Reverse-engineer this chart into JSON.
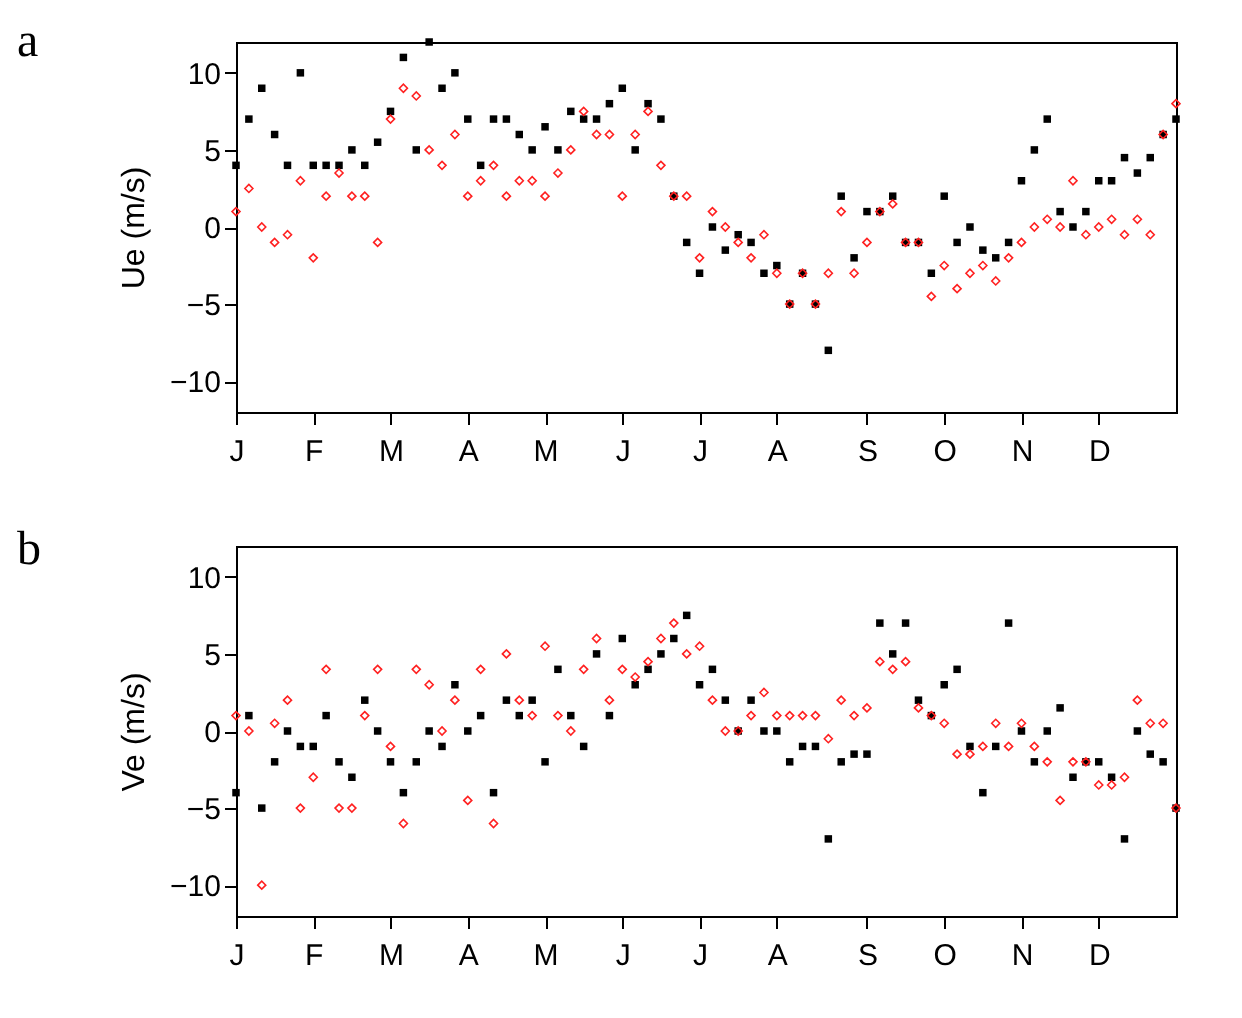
{
  "chart_data": [
    {
      "type": "scatter",
      "title": "a",
      "ylabel": "Ue (m/s)",
      "ylim": [
        -12,
        12
      ],
      "yticks": [
        -10,
        -5,
        0,
        5,
        10
      ],
      "grid": false,
      "categories": [
        "J",
        null,
        null,
        null,
        null,
        null,
        "F",
        null,
        null,
        null,
        null,
        null,
        "M",
        null,
        null,
        null,
        null,
        null,
        "A",
        null,
        null,
        null,
        null,
        null,
        "M",
        null,
        null,
        null,
        null,
        null,
        "J",
        null,
        null,
        null,
        null,
        null,
        "J",
        null,
        null,
        null,
        null,
        null,
        "A",
        null,
        null,
        null,
        null,
        null,
        null,
        "S",
        null,
        null,
        null,
        null,
        null,
        "O",
        null,
        null,
        null,
        null,
        null,
        "N",
        null,
        null,
        null,
        null,
        null,
        "D",
        null,
        null,
        null,
        null,
        null,
        null
      ],
      "series": [
        {
          "color": "#000000",
          "marker": "square",
          "values": [
            4,
            7,
            9,
            6,
            4,
            10,
            4,
            4,
            4,
            5,
            4,
            5.5,
            7.5,
            11,
            5,
            12,
            9,
            10,
            7,
            4,
            7,
            7,
            6,
            5,
            6.5,
            5,
            7.5,
            7,
            7,
            8,
            9,
            5,
            8,
            7,
            2,
            -1,
            -3,
            0,
            -1.5,
            -0.5,
            -1,
            -3,
            -2.5,
            -5,
            -3,
            -5,
            -8,
            2,
            -2,
            1,
            1,
            2,
            -1,
            -1,
            -3,
            2,
            -1,
            0,
            -1.5,
            -2,
            -1,
            3,
            5,
            7,
            1,
            0,
            1,
            3,
            3,
            4.5,
            3.5,
            4.5,
            6,
            7
          ]
        },
        {
          "color": "#ff2020",
          "marker": "diamond",
          "values": [
            1,
            2.5,
            0,
            -1,
            -0.5,
            3,
            -2,
            2,
            3.5,
            2,
            2,
            -1,
            7,
            9,
            8.5,
            5,
            4,
            6,
            2,
            3,
            4,
            2,
            3,
            3,
            2,
            3.5,
            5,
            7.5,
            6,
            6,
            2,
            6,
            7.5,
            4,
            2,
            2,
            -2,
            1,
            0,
            -1,
            -2,
            -0.5,
            -3,
            -5,
            -3,
            -5,
            -3,
            1,
            -3,
            -1,
            1,
            1.5,
            -1,
            -1,
            -4.5,
            -2.5,
            -4,
            -3,
            -2.5,
            -3.5,
            -2,
            -1,
            0,
            0.5,
            0,
            3,
            -0.5,
            0,
            0.5,
            -0.5,
            0.5,
            -0.5,
            6,
            8
          ]
        }
      ]
    },
    {
      "type": "scatter",
      "title": "b",
      "ylabel": "Ve (m/s)",
      "ylim": [
        -12,
        12
      ],
      "yticks": [
        -10,
        -5,
        0,
        5,
        10
      ],
      "grid": false,
      "categories": [
        "J",
        null,
        null,
        null,
        null,
        null,
        "F",
        null,
        null,
        null,
        null,
        null,
        "M",
        null,
        null,
        null,
        null,
        null,
        "A",
        null,
        null,
        null,
        null,
        null,
        "M",
        null,
        null,
        null,
        null,
        null,
        "J",
        null,
        null,
        null,
        null,
        null,
        "J",
        null,
        null,
        null,
        null,
        null,
        "A",
        null,
        null,
        null,
        null,
        null,
        null,
        "S",
        null,
        null,
        null,
        null,
        null,
        "O",
        null,
        null,
        null,
        null,
        null,
        "N",
        null,
        null,
        null,
        null,
        null,
        "D",
        null,
        null,
        null,
        null,
        null,
        null
      ],
      "series": [
        {
          "color": "#000000",
          "marker": "square",
          "values": [
            -4,
            1,
            -5,
            -2,
            0,
            -1,
            -1,
            1,
            -2,
            -3,
            2,
            0,
            -2,
            -4,
            -2,
            0,
            -1,
            3,
            0,
            1,
            -4,
            2,
            1,
            2,
            -2,
            4,
            1,
            -1,
            5,
            1,
            6,
            3,
            4,
            5,
            6,
            7.5,
            3,
            4,
            2,
            0,
            2,
            0,
            0,
            -2,
            -1,
            -1,
            -7,
            -2,
            -1.5,
            -1.5,
            7,
            5,
            7,
            2,
            1,
            3,
            4,
            -1,
            -4,
            -1,
            7,
            0,
            -2,
            0,
            1.5,
            -3,
            -2,
            -2,
            -3,
            -7,
            0,
            -1.5,
            -2,
            -5
          ]
        },
        {
          "color": "#ff2020",
          "marker": "diamond",
          "values": [
            1,
            0,
            -10,
            0.5,
            2,
            -5,
            -3,
            4,
            -5,
            -5,
            1,
            4,
            -1,
            -6,
            4,
            3,
            0,
            2,
            -4.5,
            4,
            -6,
            5,
            2,
            1,
            5.5,
            1,
            0,
            4,
            6,
            2,
            4,
            3.5,
            4.5,
            6,
            7,
            5,
            5.5,
            2,
            0,
            0,
            1,
            2.5,
            1,
            1,
            1,
            1,
            -0.5,
            2,
            1,
            1.5,
            4.5,
            4,
            4.5,
            1.5,
            1,
            0.5,
            -1.5,
            -1.5,
            -1,
            0.5,
            -1,
            0.5,
            -1,
            -2,
            -4.5,
            -2,
            -2,
            -3.5,
            -3.5,
            -3,
            2,
            0.5,
            0.5,
            -5
          ]
        }
      ]
    }
  ]
}
